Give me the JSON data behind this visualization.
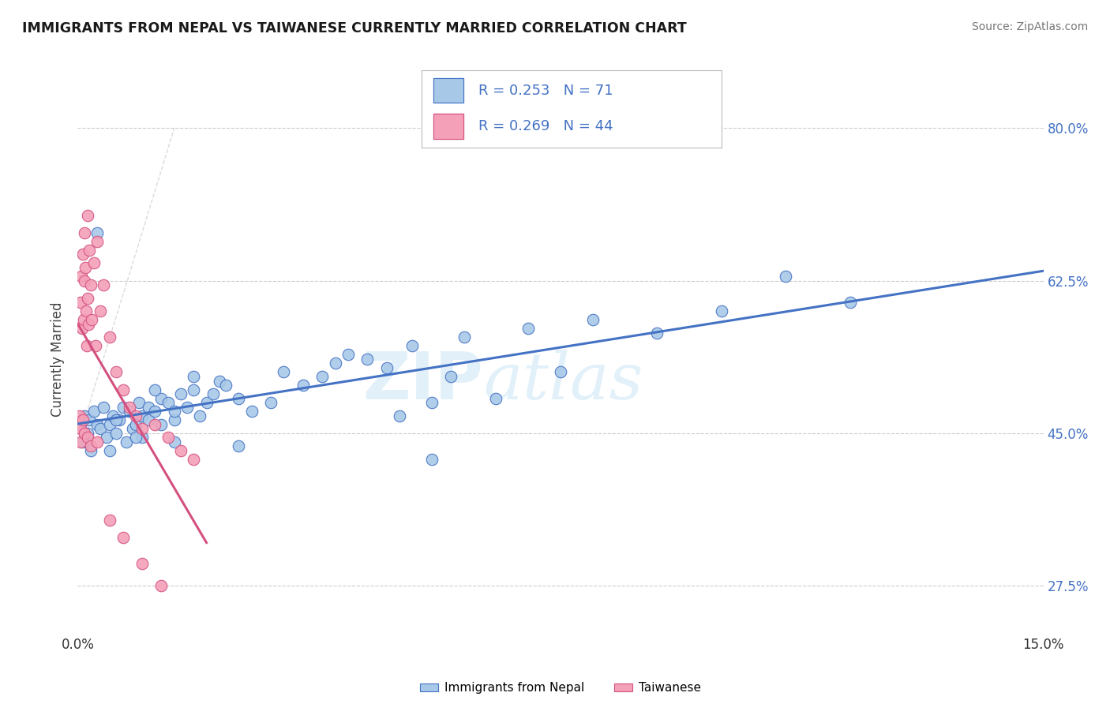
{
  "title": "IMMIGRANTS FROM NEPAL VS TAIWANESE CURRENTLY MARRIED CORRELATION CHART",
  "source": "Source: ZipAtlas.com",
  "ylabel": "Currently Married",
  "xlim": [
    0.0,
    15.0
  ],
  "ylim": [
    22.0,
    85.0
  ],
  "y_ticks": [
    27.5,
    45.0,
    62.5,
    80.0
  ],
  "color_nepal": "#a8c8e8",
  "color_taiwanese": "#f4a0b8",
  "color_nepal_line": "#4472c4",
  "color_taiwanese_line": "#d45080",
  "color_legend_text": "#4472c4",
  "watermark": "ZIPatlas",
  "nepal_x": [
    0.05,
    0.08,
    0.1,
    0.15,
    0.18,
    0.2,
    0.25,
    0.3,
    0.35,
    0.4,
    0.45,
    0.5,
    0.5,
    0.55,
    0.6,
    0.65,
    0.7,
    0.75,
    0.8,
    0.85,
    0.9,
    0.95,
    1.0,
    1.0,
    1.1,
    1.1,
    1.2,
    1.3,
    1.3,
    1.4,
    1.5,
    1.5,
    1.6,
    1.7,
    1.8,
    1.9,
    2.0,
    2.1,
    2.2,
    2.3,
    2.5,
    2.7,
    3.0,
    3.2,
    3.5,
    3.8,
    4.0,
    4.2,
    4.5,
    4.8,
    5.0,
    5.2,
    5.5,
    5.8,
    6.0,
    6.5,
    7.0,
    7.5,
    8.0,
    9.0,
    10.0,
    11.0,
    12.0,
    0.3,
    0.6,
    0.9,
    1.2,
    1.5,
    1.8,
    2.5,
    5.5
  ],
  "nepal_y": [
    46.0,
    44.0,
    47.0,
    45.0,
    46.5,
    43.0,
    47.5,
    46.0,
    45.5,
    48.0,
    44.5,
    46.0,
    43.0,
    47.0,
    45.0,
    46.5,
    48.0,
    44.0,
    47.5,
    45.5,
    46.0,
    48.5,
    47.0,
    44.5,
    48.0,
    46.5,
    47.5,
    49.0,
    46.0,
    48.5,
    46.5,
    44.0,
    49.5,
    48.0,
    50.0,
    47.0,
    48.5,
    49.5,
    51.0,
    50.5,
    49.0,
    47.5,
    48.5,
    52.0,
    50.5,
    51.5,
    53.0,
    54.0,
    53.5,
    52.5,
    47.0,
    55.0,
    48.5,
    51.5,
    56.0,
    49.0,
    57.0,
    52.0,
    58.0,
    56.5,
    59.0,
    63.0,
    60.0,
    68.0,
    46.5,
    44.5,
    50.0,
    47.5,
    51.5,
    43.5,
    42.0
  ],
  "taiwanese_x": [
    0.02,
    0.03,
    0.04,
    0.05,
    0.06,
    0.07,
    0.08,
    0.09,
    0.1,
    0.1,
    0.12,
    0.13,
    0.14,
    0.15,
    0.16,
    0.17,
    0.18,
    0.2,
    0.22,
    0.25,
    0.28,
    0.3,
    0.35,
    0.4,
    0.5,
    0.6,
    0.7,
    0.8,
    0.9,
    1.0,
    1.2,
    1.4,
    1.6,
    1.8,
    0.05,
    0.08,
    0.1,
    0.15,
    0.2,
    0.3,
    0.5,
    0.7,
    1.0,
    1.3
  ],
  "taiwanese_y": [
    46.0,
    47.0,
    45.5,
    60.0,
    63.0,
    57.0,
    65.5,
    58.0,
    68.0,
    62.5,
    64.0,
    59.0,
    55.0,
    70.0,
    60.5,
    57.5,
    66.0,
    62.0,
    58.0,
    64.5,
    55.0,
    67.0,
    59.0,
    62.0,
    56.0,
    52.0,
    50.0,
    48.0,
    47.0,
    45.5,
    46.0,
    44.5,
    43.0,
    42.0,
    44.0,
    46.5,
    45.0,
    44.5,
    43.5,
    44.0,
    35.0,
    33.0,
    30.0,
    27.5
  ]
}
